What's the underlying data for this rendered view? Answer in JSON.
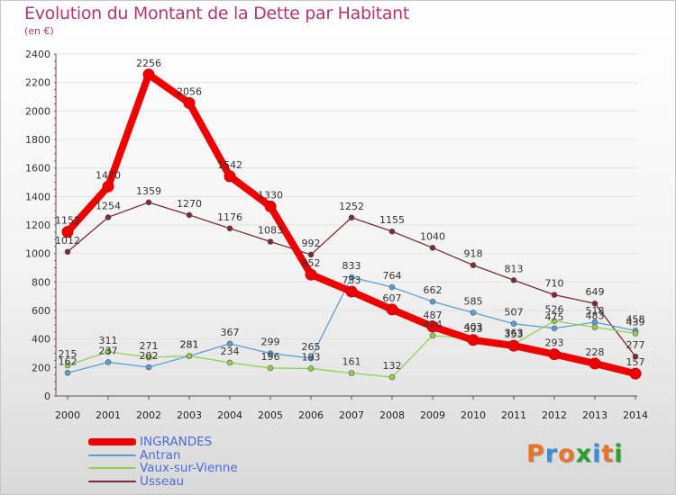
{
  "title": "Evolution du Montant de la Dette par Habitant",
  "subtitle": "(en €)",
  "logo": {
    "text": "Proxiti",
    "letters": [
      {
        "ch": "P",
        "color": "#e8732a"
      },
      {
        "ch": "r",
        "color": "#3c8de0"
      },
      {
        "ch": "o",
        "color": "#e8732a"
      },
      {
        "ch": "x",
        "color": "#2aa02a"
      },
      {
        "ch": "i",
        "color": "#3c8de0"
      },
      {
        "ch": "t",
        "color": "#e8732a"
      },
      {
        "ch": "i",
        "color": "#2aa02a"
      }
    ]
  },
  "chart_data": {
    "type": "line",
    "title": "Evolution du Montant de la Dette par Habitant",
    "subtitle": "(en €)",
    "x": [
      2000,
      2001,
      2002,
      2003,
      2004,
      2005,
      2006,
      2007,
      2008,
      2009,
      2010,
      2011,
      2012,
      2013,
      2014
    ],
    "ylim": [
      0,
      2400
    ],
    "yticks": [
      0,
      200,
      400,
      600,
      800,
      1000,
      1200,
      1400,
      1600,
      1800,
      2000,
      2200,
      2400
    ],
    "grid": true,
    "legend": "bottom-left",
    "series": [
      {
        "name": "INGRANDES",
        "color": "#ee0000",
        "values": [
          1152,
          1470,
          2256,
          2056,
          1542,
          1330,
          852,
          733,
          607,
          487,
          393,
          353,
          293,
          228,
          157
        ],
        "labels_above": true
      },
      {
        "name": "Antran",
        "color": "#5a9fd4",
        "values": [
          162,
          237,
          202,
          281,
          367,
          299,
          265,
          833,
          764,
          662,
          585,
          507,
          475,
          518,
          458
        ],
        "labels_above": true
      },
      {
        "name": "Vaux-sur-Vienne",
        "color": "#92d04c",
        "values": [
          215,
          311,
          271,
          281,
          234,
          196,
          193,
          161,
          132,
          424,
          403,
          363,
          526,
          483,
          439
        ],
        "labels_above": true
      },
      {
        "name": "Usseau",
        "color": "#7a2a3a",
        "values": [
          1012,
          1254,
          1359,
          1270,
          1176,
          1083,
          992,
          1252,
          1155,
          1040,
          918,
          813,
          710,
          649,
          277
        ],
        "labels_above": true
      }
    ]
  }
}
